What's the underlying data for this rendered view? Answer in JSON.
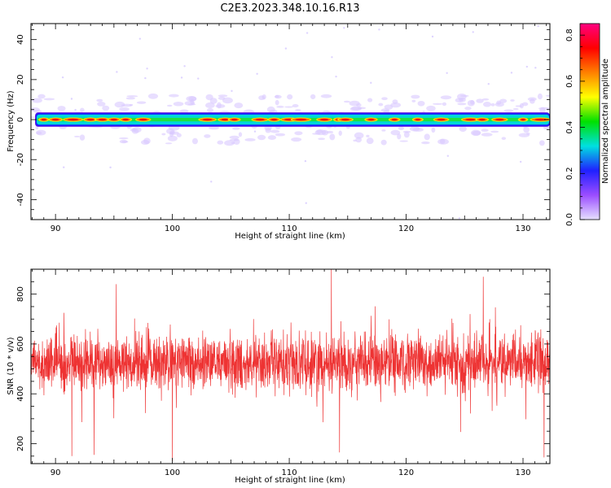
{
  "figure": {
    "title": "C2E3.2023.348.10.16.R13"
  },
  "chart_data": [
    {
      "type": "heatmap",
      "title": "C2E3.2023.348.10.16.R13",
      "xlabel": "Height of straight line (km)",
      "ylabel": "Frequency (Hz)",
      "xlim": [
        87.9,
        132.3
      ],
      "ylim": [
        -50,
        48
      ],
      "x_ticks": [
        90,
        100,
        110,
        120,
        130
      ],
      "y_ticks": [
        -40,
        -20,
        0,
        20,
        40
      ],
      "band_center_hz": 0,
      "band_halfwidth_hz": 3,
      "colorbar": {
        "label": "Normalized spectral amplitude",
        "range": [
          0.0,
          0.85
        ],
        "ticks": [
          0.0,
          0.2,
          0.4,
          0.6,
          0.8
        ],
        "colormap": [
          "#e6e0ff",
          "#9b4dff",
          "#2020ff",
          "#00e0e0",
          "#00e000",
          "#ffff00",
          "#ff8000",
          "#ff0000",
          "#ff0080"
        ]
      }
    },
    {
      "type": "line",
      "xlabel": "Height of straight line (km)",
      "ylabel": "SNR (10 * v/v)",
      "xlim": [
        87.9,
        132.3
      ],
      "ylim": [
        120,
        900
      ],
      "x_ticks": [
        90,
        100,
        110,
        120,
        130
      ],
      "y_ticks": [
        200,
        400,
        600,
        800
      ],
      "line_color": "#ee3333",
      "typical_range": [
        400,
        650
      ],
      "mean": 525,
      "notable_points": [
        {
          "x": 91.4,
          "y": 150
        },
        {
          "x": 93.3,
          "y": 155
        },
        {
          "x": 95.2,
          "y": 840
        },
        {
          "x": 100.0,
          "y": 130
        },
        {
          "x": 113.6,
          "y": 900
        },
        {
          "x": 114.3,
          "y": 165
        },
        {
          "x": 126.6,
          "y": 870
        },
        {
          "x": 131.8,
          "y": 145
        }
      ]
    }
  ]
}
